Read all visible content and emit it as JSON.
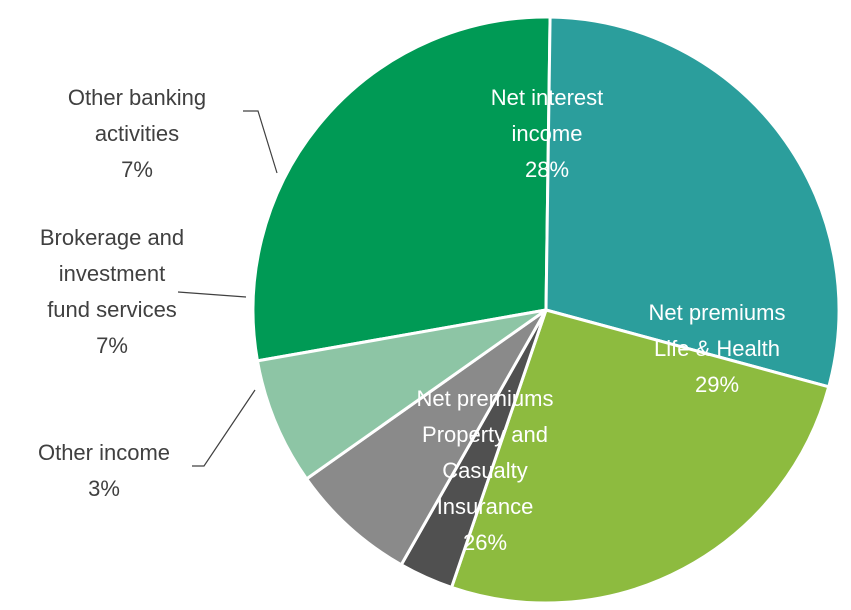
{
  "chart_data": {
    "type": "pie",
    "title": "",
    "slices": [
      {
        "label_lines": [
          "Net interest",
          "income"
        ],
        "value": 28,
        "value_label": "28%",
        "color": "#009a55"
      },
      {
        "label_lines": [
          "Net premiums",
          "Life & Health"
        ],
        "value": 29,
        "value_label": "29%",
        "color": "#2b9e9c"
      },
      {
        "label_lines": [
          "Net premiums",
          "Property  and",
          "Casualty",
          "Insurance"
        ],
        "value": 26,
        "value_label": "26%",
        "color": "#8dbb3f"
      },
      {
        "label_lines": [
          "Other income"
        ],
        "value": 3,
        "value_label": "3%",
        "color": "#505050"
      },
      {
        "label_lines": [
          "Brokerage and",
          "investment",
          "fund services"
        ],
        "value": 7,
        "value_label": "7%",
        "color": "#8a8a8a"
      },
      {
        "label_lines": [
          "Other banking",
          "activities"
        ],
        "value": 7,
        "value_label": "7%",
        "color": "#8dc5a5"
      }
    ],
    "legend": "none",
    "labels": "data labels with category name and percentage"
  }
}
